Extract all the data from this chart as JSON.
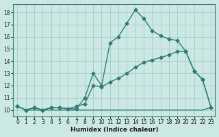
{
  "line1_x": [
    0,
    1,
    2,
    3,
    4,
    5,
    6,
    7,
    8,
    9,
    10,
    11,
    12,
    13,
    14,
    15,
    16,
    17,
    18,
    19,
    20,
    21,
    22,
    23
  ],
  "line1_y": [
    10.3,
    10.0,
    10.2,
    10.0,
    10.2,
    10.2,
    10.1,
    10.1,
    11.0,
    13.0,
    12.0,
    15.5,
    16.0,
    17.1,
    18.2,
    17.5,
    16.5,
    16.1,
    15.8,
    15.7,
    14.8,
    13.2,
    12.5,
    10.2
  ],
  "line2_x": [
    0,
    1,
    2,
    3,
    4,
    5,
    6,
    7,
    8,
    9,
    10,
    11,
    12,
    13,
    14,
    15,
    16,
    17,
    18,
    19,
    20,
    21,
    22,
    23
  ],
  "line2_y": [
    10.3,
    10.0,
    10.2,
    10.0,
    10.2,
    10.2,
    10.1,
    10.3,
    10.5,
    12.0,
    11.9,
    12.3,
    12.6,
    13.0,
    13.5,
    13.9,
    14.1,
    14.3,
    14.5,
    14.8,
    14.8,
    13.2,
    12.5,
    10.2
  ],
  "line3_x": [
    0,
    1,
    2,
    3,
    4,
    5,
    6,
    7,
    8,
    9,
    10,
    11,
    12,
    13,
    14,
    15,
    16,
    17,
    18,
    19,
    20,
    21,
    22,
    23
  ],
  "line3_y": [
    10.3,
    10.0,
    10.0,
    10.0,
    10.0,
    10.0,
    10.0,
    10.0,
    10.0,
    10.0,
    10.0,
    10.0,
    10.0,
    10.0,
    10.0,
    10.0,
    10.0,
    10.0,
    10.0,
    10.0,
    10.0,
    10.0,
    10.0,
    10.2
  ],
  "color": "#2e7d72",
  "bg_color": "#cce8e4",
  "grid_color": "#aacfcb",
  "xlabel": "Humidex (Indice chaleur)",
  "xlim": [
    -0.5,
    23.5
  ],
  "ylim": [
    9.5,
    18.7
  ],
  "yticks": [
    10,
    11,
    12,
    13,
    14,
    15,
    16,
    17,
    18
  ],
  "xticks": [
    0,
    1,
    2,
    3,
    4,
    5,
    6,
    7,
    8,
    9,
    10,
    11,
    12,
    13,
    14,
    15,
    16,
    17,
    18,
    19,
    20,
    21,
    22,
    23
  ],
  "marker": "D",
  "markersize": 2.5,
  "linewidth": 1.0
}
